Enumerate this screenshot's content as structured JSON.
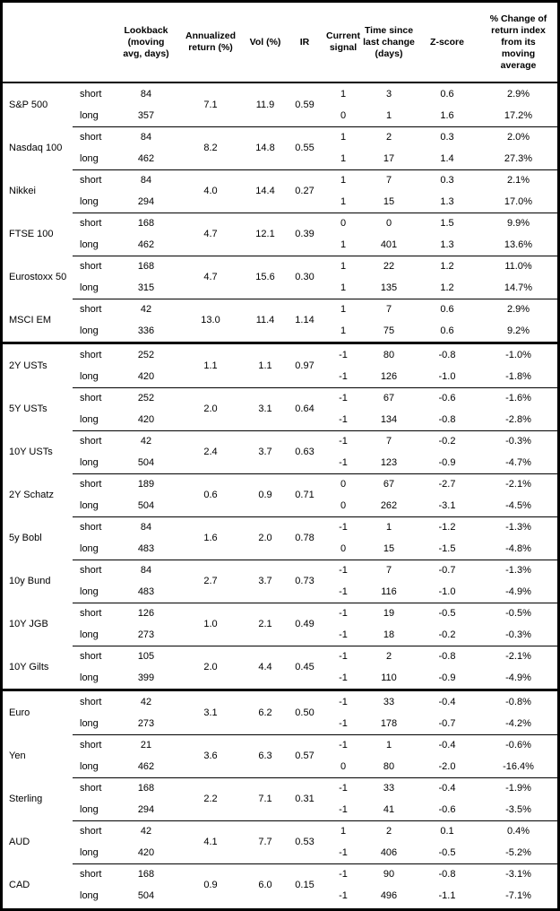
{
  "colors": {
    "text": "#000000",
    "background": "#ffffff",
    "border": "#000000"
  },
  "chart_data": {
    "type": "table",
    "column_headers": {
      "lookback": "Lookback\n(moving\navg, days)",
      "annualized": "Annualized\nreturn (%)",
      "vol": "Vol (%)",
      "ir": "IR",
      "signal": "Current\nsignal",
      "time_since": "Time since\nlast change\n(days)",
      "zscore": "Z-score",
      "pct_change": "% Change of\nreturn index\nfrom its\nmoving\naverage"
    },
    "row_labels": {
      "short": "short",
      "long": "long"
    },
    "sections": [
      {
        "assets": [
          {
            "name": "S&P 500",
            "annualized": "7.1",
            "vol": "11.9",
            "ir": "0.59",
            "short": {
              "lookback": "84",
              "signal": "1",
              "time_since": "3",
              "zscore": "0.6",
              "pct_change": "2.9%"
            },
            "long": {
              "lookback": "357",
              "signal": "0",
              "time_since": "1",
              "zscore": "1.6",
              "pct_change": "17.2%"
            }
          },
          {
            "name": "Nasdaq 100",
            "annualized": "8.2",
            "vol": "14.8",
            "ir": "0.55",
            "short": {
              "lookback": "84",
              "signal": "1",
              "time_since": "2",
              "zscore": "0.3",
              "pct_change": "2.0%"
            },
            "long": {
              "lookback": "462",
              "signal": "1",
              "time_since": "17",
              "zscore": "1.4",
              "pct_change": "27.3%"
            }
          },
          {
            "name": "Nikkei",
            "annualized": "4.0",
            "vol": "14.4",
            "ir": "0.27",
            "short": {
              "lookback": "84",
              "signal": "1",
              "time_since": "7",
              "zscore": "0.3",
              "pct_change": "2.1%"
            },
            "long": {
              "lookback": "294",
              "signal": "1",
              "time_since": "15",
              "zscore": "1.3",
              "pct_change": "17.0%"
            }
          },
          {
            "name": "FTSE 100",
            "annualized": "4.7",
            "vol": "12.1",
            "ir": "0.39",
            "short": {
              "lookback": "168",
              "signal": "0",
              "time_since": "0",
              "zscore": "1.5",
              "pct_change": "9.9%"
            },
            "long": {
              "lookback": "462",
              "signal": "1",
              "time_since": "401",
              "zscore": "1.3",
              "pct_change": "13.6%"
            }
          },
          {
            "name": "Eurostoxx 50",
            "annualized": "4.7",
            "vol": "15.6",
            "ir": "0.30",
            "short": {
              "lookback": "168",
              "signal": "1",
              "time_since": "22",
              "zscore": "1.2",
              "pct_change": "11.0%"
            },
            "long": {
              "lookback": "315",
              "signal": "1",
              "time_since": "135",
              "zscore": "1.2",
              "pct_change": "14.7%"
            }
          },
          {
            "name": "MSCI EM",
            "annualized": "13.0",
            "vol": "11.4",
            "ir": "1.14",
            "short": {
              "lookback": "42",
              "signal": "1",
              "time_since": "7",
              "zscore": "0.6",
              "pct_change": "2.9%"
            },
            "long": {
              "lookback": "336",
              "signal": "1",
              "time_since": "75",
              "zscore": "0.6",
              "pct_change": "9.2%"
            }
          }
        ]
      },
      {
        "assets": [
          {
            "name": "2Y USTs",
            "annualized": "1.1",
            "vol": "1.1",
            "ir": "0.97",
            "short": {
              "lookback": "252",
              "signal": "-1",
              "time_since": "80",
              "zscore": "-0.8",
              "pct_change": "-1.0%"
            },
            "long": {
              "lookback": "420",
              "signal": "-1",
              "time_since": "126",
              "zscore": "-1.0",
              "pct_change": "-1.8%"
            }
          },
          {
            "name": "5Y USTs",
            "annualized": "2.0",
            "vol": "3.1",
            "ir": "0.64",
            "short": {
              "lookback": "252",
              "signal": "-1",
              "time_since": "67",
              "zscore": "-0.6",
              "pct_change": "-1.6%"
            },
            "long": {
              "lookback": "420",
              "signal": "-1",
              "time_since": "134",
              "zscore": "-0.8",
              "pct_change": "-2.8%"
            }
          },
          {
            "name": "10Y USTs",
            "annualized": "2.4",
            "vol": "3.7",
            "ir": "0.63",
            "short": {
              "lookback": "42",
              "signal": "-1",
              "time_since": "7",
              "zscore": "-0.2",
              "pct_change": "-0.3%"
            },
            "long": {
              "lookback": "504",
              "signal": "-1",
              "time_since": "123",
              "zscore": "-0.9",
              "pct_change": "-4.7%"
            }
          },
          {
            "name": "2Y Schatz",
            "annualized": "0.6",
            "vol": "0.9",
            "ir": "0.71",
            "short": {
              "lookback": "189",
              "signal": "0",
              "time_since": "67",
              "zscore": "-2.7",
              "pct_change": "-2.1%"
            },
            "long": {
              "lookback": "504",
              "signal": "0",
              "time_since": "262",
              "zscore": "-3.1",
              "pct_change": "-4.5%"
            }
          },
          {
            "name": "5y Bobl",
            "annualized": "1.6",
            "vol": "2.0",
            "ir": "0.78",
            "short": {
              "lookback": "84",
              "signal": "-1",
              "time_since": "1",
              "zscore": "-1.2",
              "pct_change": "-1.3%"
            },
            "long": {
              "lookback": "483",
              "signal": "0",
              "time_since": "15",
              "zscore": "-1.5",
              "pct_change": "-4.8%"
            }
          },
          {
            "name": "10y Bund",
            "annualized": "2.7",
            "vol": "3.7",
            "ir": "0.73",
            "short": {
              "lookback": "84",
              "signal": "-1",
              "time_since": "7",
              "zscore": "-0.7",
              "pct_change": "-1.3%"
            },
            "long": {
              "lookback": "483",
              "signal": "-1",
              "time_since": "116",
              "zscore": "-1.0",
              "pct_change": "-4.9%"
            }
          },
          {
            "name": "10Y JGB",
            "annualized": "1.0",
            "vol": "2.1",
            "ir": "0.49",
            "short": {
              "lookback": "126",
              "signal": "-1",
              "time_since": "19",
              "zscore": "-0.5",
              "pct_change": "-0.5%"
            },
            "long": {
              "lookback": "273",
              "signal": "-1",
              "time_since": "18",
              "zscore": "-0.2",
              "pct_change": "-0.3%"
            }
          },
          {
            "name": "10Y Gilts",
            "annualized": "2.0",
            "vol": "4.4",
            "ir": "0.45",
            "short": {
              "lookback": "105",
              "signal": "-1",
              "time_since": "2",
              "zscore": "-0.8",
              "pct_change": "-2.1%"
            },
            "long": {
              "lookback": "399",
              "signal": "-1",
              "time_since": "110",
              "zscore": "-0.9",
              "pct_change": "-4.9%"
            }
          }
        ]
      },
      {
        "assets": [
          {
            "name": "Euro",
            "annualized": "3.1",
            "vol": "6.2",
            "ir": "0.50",
            "short": {
              "lookback": "42",
              "signal": "-1",
              "time_since": "33",
              "zscore": "-0.4",
              "pct_change": "-0.8%"
            },
            "long": {
              "lookback": "273",
              "signal": "-1",
              "time_since": "178",
              "zscore": "-0.7",
              "pct_change": "-4.2%"
            }
          },
          {
            "name": "Yen",
            "annualized": "3.6",
            "vol": "6.3",
            "ir": "0.57",
            "short": {
              "lookback": "21",
              "signal": "-1",
              "time_since": "1",
              "zscore": "-0.4",
              "pct_change": "-0.6%"
            },
            "long": {
              "lookback": "462",
              "signal": "0",
              "time_since": "80",
              "zscore": "-2.0",
              "pct_change": "-16.4%"
            }
          },
          {
            "name": "Sterling",
            "annualized": "2.2",
            "vol": "7.1",
            "ir": "0.31",
            "short": {
              "lookback": "168",
              "signal": "-1",
              "time_since": "33",
              "zscore": "-0.4",
              "pct_change": "-1.9%"
            },
            "long": {
              "lookback": "294",
              "signal": "-1",
              "time_since": "41",
              "zscore": "-0.6",
              "pct_change": "-3.5%"
            }
          },
          {
            "name": "AUD",
            "annualized": "4.1",
            "vol": "7.7",
            "ir": "0.53",
            "short": {
              "lookback": "42",
              "signal": "1",
              "time_since": "2",
              "zscore": "0.1",
              "pct_change": "0.4%"
            },
            "long": {
              "lookback": "420",
              "signal": "-1",
              "time_since": "406",
              "zscore": "-0.5",
              "pct_change": "-5.2%"
            }
          },
          {
            "name": "CAD",
            "annualized": "0.9",
            "vol": "6.0",
            "ir": "0.15",
            "short": {
              "lookback": "168",
              "signal": "-1",
              "time_since": "90",
              "zscore": "-0.8",
              "pct_change": "-3.1%"
            },
            "long": {
              "lookback": "504",
              "signal": "-1",
              "time_since": "496",
              "zscore": "-1.1",
              "pct_change": "-7.1%"
            }
          }
        ]
      }
    ]
  }
}
